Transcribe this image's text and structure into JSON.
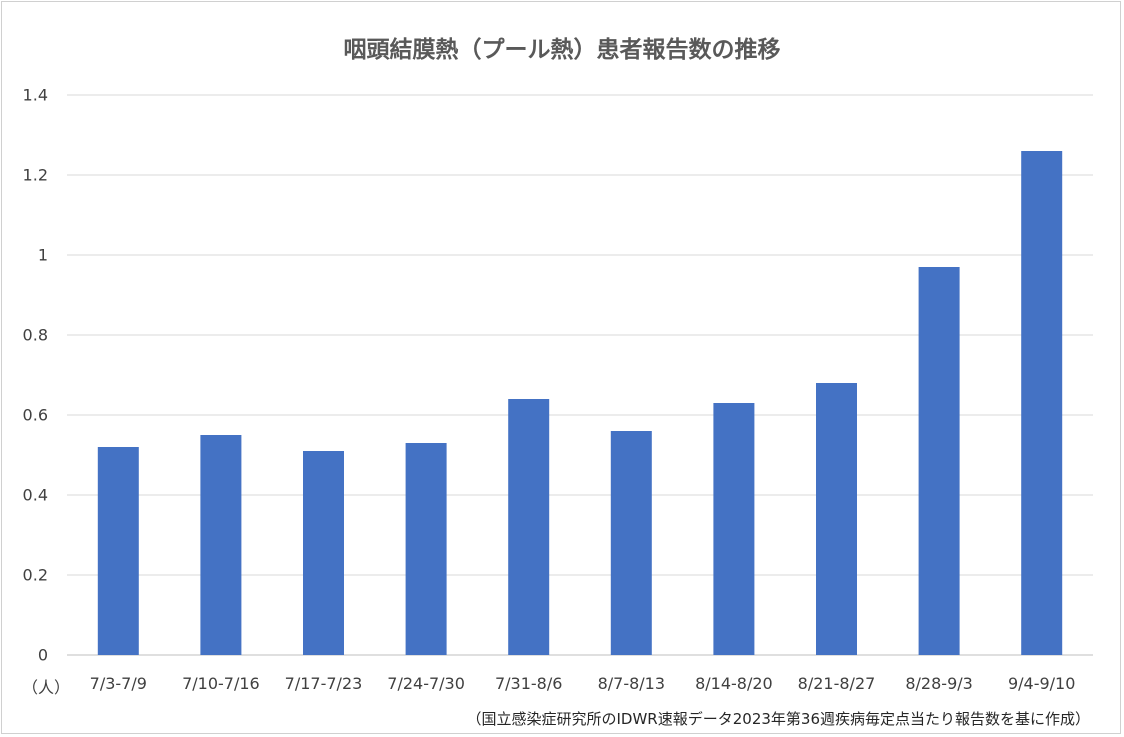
{
  "chart_data": {
    "type": "bar",
    "title": "咽頭結膜熱（プール熱）患者報告数の推移",
    "categories": [
      "7/3-7/9",
      "7/10-7/16",
      "7/17-7/23",
      "7/24-7/30",
      "7/31-8/6",
      "8/7-8/13",
      "8/14-8/20",
      "8/21-8/27",
      "8/28-9/3",
      "9/4-9/10"
    ],
    "values": [
      0.52,
      0.55,
      0.51,
      0.53,
      0.64,
      0.56,
      0.63,
      0.68,
      0.97,
      1.26
    ],
    "ylabel": "（人）",
    "yticks": [
      "0",
      "0.2",
      "0.4",
      "0.6",
      "0.8",
      "1",
      "1.2",
      "1.4"
    ],
    "ylim": [
      0,
      1.4
    ],
    "grid": true,
    "bar_color": "#4472c4",
    "note": "（国立感染症研究所のIDWR速報データ2023年第36週疾病毎定点当たり報告数を基に作成）"
  }
}
